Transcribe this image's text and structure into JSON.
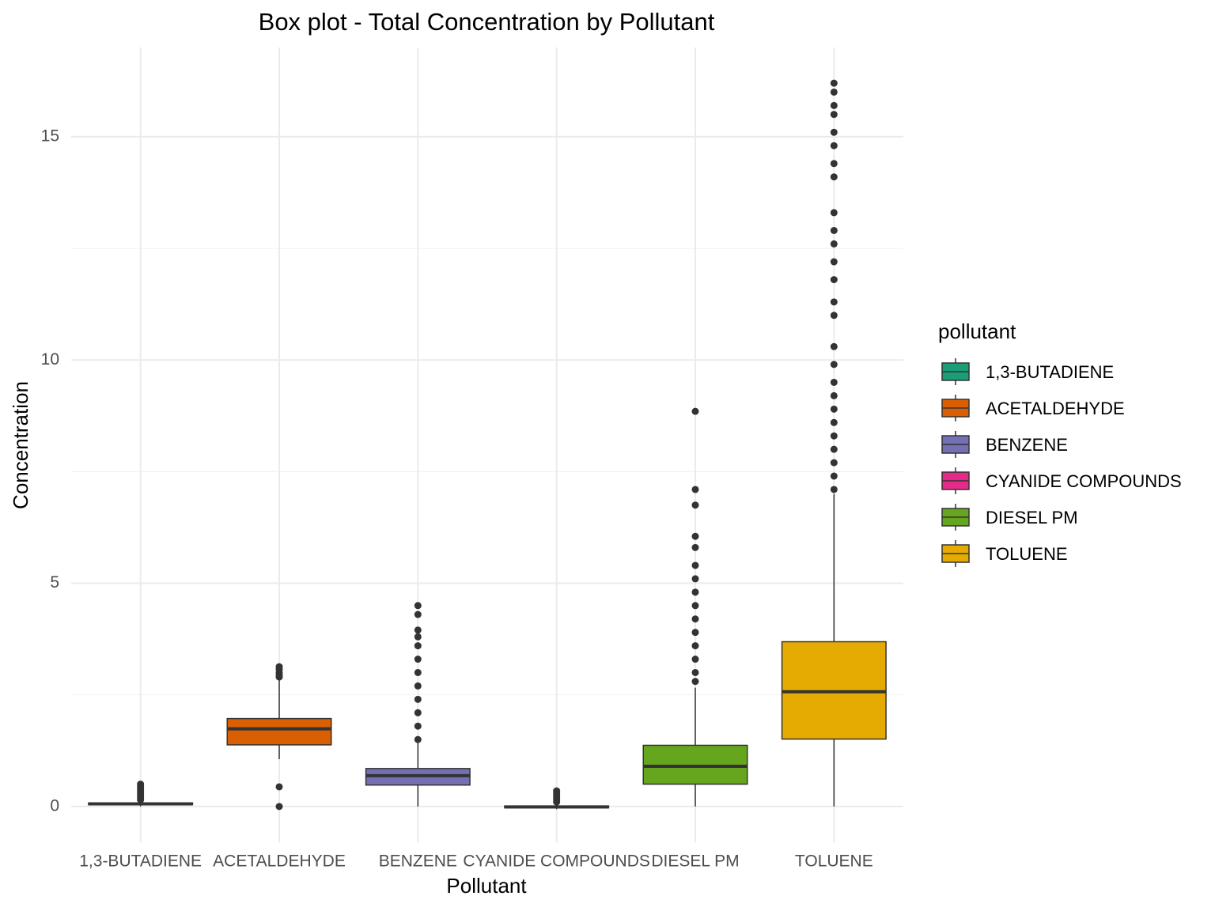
{
  "chart_data": {
    "type": "box",
    "title": "Box plot - Total Concentration by Pollutant",
    "x_label": "Pollutant",
    "y_label": "Concentration",
    "legend_title": "pollutant",
    "legend_position": "right",
    "ylim": [
      -0.8,
      17.0
    ],
    "yticks": [
      0,
      5,
      10,
      15
    ],
    "minor_yticks": [
      2.5,
      7.5,
      12.5
    ],
    "grid": true,
    "boxes": [
      {
        "name": "1,3-BUTADIENE",
        "color": "#1b9e77",
        "min": 0.0,
        "q1": 0.04,
        "median": 0.06,
        "q3": 0.08,
        "max": 0.13,
        "outliers": [
          0.15,
          0.2,
          0.25,
          0.3,
          0.35,
          0.4,
          0.45,
          0.5
        ]
      },
      {
        "name": "ACETALDEHYDE",
        "color": "#d95f02",
        "min": 1.06,
        "q1": 1.38,
        "median": 1.74,
        "q3": 1.97,
        "max": 2.85,
        "outliers": [
          0,
          0.44,
          2.9,
          2.95,
          3.0,
          3.07,
          3.13
        ]
      },
      {
        "name": "BENZENE",
        "color": "#7570b3",
        "min": 0.0,
        "q1": 0.48,
        "median": 0.69,
        "q3": 0.85,
        "max": 1.42,
        "outliers": [
          1.5,
          1.8,
          2.1,
          2.4,
          2.7,
          3.0,
          3.3,
          3.6,
          3.8,
          3.95,
          4.3,
          4.5
        ]
      },
      {
        "name": "CYANIDE COMPOUNDS",
        "color": "#e7298a",
        "min": -0.06,
        "q1": -0.03,
        "median": -0.01,
        "q3": 0.01,
        "max": 0.06,
        "outliers": [
          0.1,
          0.15,
          0.2,
          0.25,
          0.3,
          0.35
        ]
      },
      {
        "name": "DIESEL PM",
        "color": "#66a61e",
        "min": 0.0,
        "q1": 0.5,
        "median": 0.9,
        "q3": 1.37,
        "max": 2.66,
        "outliers": [
          2.8,
          3.0,
          3.3,
          3.6,
          3.9,
          4.2,
          4.5,
          4.8,
          5.1,
          5.4,
          5.8,
          6.05,
          6.75,
          7.1,
          8.85
        ]
      },
      {
        "name": "TOLUENE",
        "color": "#e6ab02",
        "min": 0.0,
        "q1": 1.51,
        "median": 2.57,
        "q3": 3.69,
        "max": 7.0,
        "outliers": [
          7.1,
          7.4,
          7.7,
          8.0,
          8.3,
          8.6,
          8.9,
          9.2,
          9.5,
          9.9,
          10.3,
          11.0,
          11.3,
          11.8,
          12.2,
          12.6,
          12.9,
          13.3,
          14.1,
          14.4,
          14.8,
          15.1,
          15.5,
          15.7,
          16.0,
          16.2
        ]
      }
    ]
  }
}
